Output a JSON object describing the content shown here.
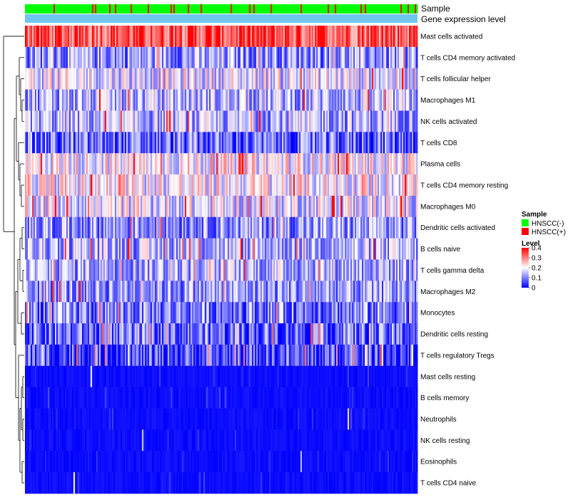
{
  "chart_data": {
    "type": "heatmap",
    "title": "",
    "annotation_track_labels": [
      "Sample",
      "Gene expression level"
    ],
    "row_labels": [
      "Mast cells activated",
      "T cells CD4 memory activated",
      "T cells follicular helper",
      "Macrophages M1",
      "NK cells activated",
      "T cells CD8",
      "Plasma cells",
      "T cells CD4 memory resting",
      "Macrophages M0",
      "Dendritic cells activated",
      "B cells naive",
      "T cells gamma delta",
      "Macrophages M2",
      "Monocytes",
      "Dendritic cells resting",
      "T cells regulatory  Tregs",
      "Mast cells resting",
      "B cells memory",
      "Neutrophils",
      "NK cells resting",
      "Eosinophils",
      "T cells CD4 naive"
    ],
    "row_mean_levels": [
      0.34,
      0.12,
      0.18,
      0.14,
      0.14,
      0.08,
      0.2,
      0.2,
      0.18,
      0.12,
      0.14,
      0.14,
      0.12,
      0.1,
      0.08,
      0.06,
      0.025,
      0.025,
      0.02,
      0.015,
      0.01,
      0.02
    ],
    "n_samples": 275,
    "sample_group_fraction_positive": 0.12,
    "legend_sample": {
      "title": "Sample",
      "entries": [
        {
          "label": "HNSCC(-)",
          "color": "#00ff00"
        },
        {
          "label": "HNSCC(+)",
          "color": "#ff0000"
        }
      ]
    },
    "legend_level": {
      "title": "Level",
      "ticks": [
        "0.4",
        "0.3",
        "0.2",
        "0.1",
        "0"
      ],
      "tick_values": [
        0.4,
        0.3,
        0.2,
        0.1,
        0
      ],
      "range": [
        0,
        0.4
      ]
    },
    "colors": {
      "low": "#0000ff",
      "mid": "#ffffff",
      "high": "#ff0000",
      "expression_track": "#6ec6f0",
      "dendrogram": "#000000"
    }
  }
}
